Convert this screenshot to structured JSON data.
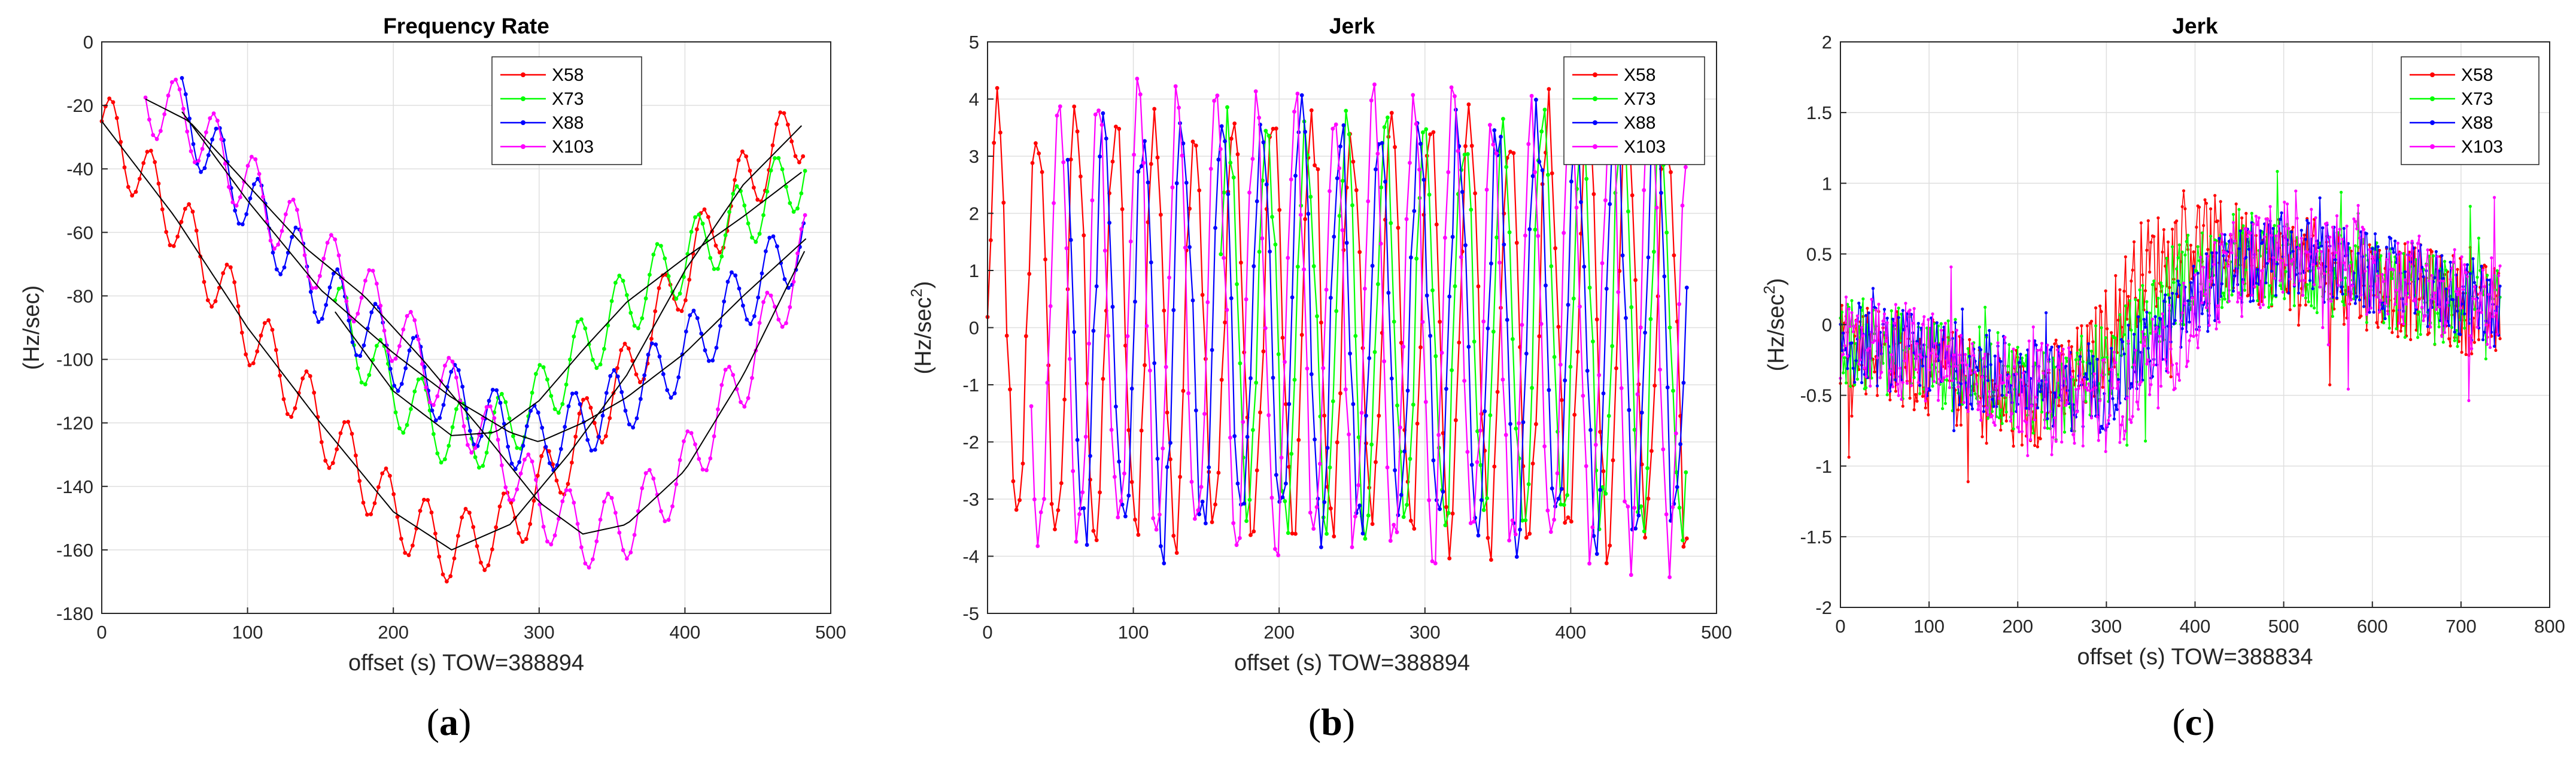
{
  "figure": {
    "captions": [
      {
        "open": "(",
        "letter": "a",
        "close": ")"
      },
      {
        "open": "(",
        "letter": "b",
        "close": ")"
      },
      {
        "open": "(",
        "letter": "c",
        "close": ")"
      }
    ]
  },
  "chart_data": [
    {
      "type": "line",
      "title": "Frequency Rate",
      "xlabel": "offset (s) TOW=388894",
      "ylabel": "(Hz/sec)",
      "xlim": [
        0,
        500
      ],
      "ylim": [
        -180,
        0
      ],
      "xticks": [
        0,
        100,
        200,
        300,
        400,
        500
      ],
      "yticks": [
        -180,
        -160,
        -140,
        -120,
        -100,
        -80,
        -60,
        -40,
        -20,
        0
      ],
      "grid": true,
      "legend_position": "top-right",
      "series": [
        {
          "name": "X58",
          "color": "#ff0000",
          "x_range": [
            0,
            483
          ],
          "trend": [
            [
              0,
              -25
            ],
            [
              50,
              -55
            ],
            [
              100,
              -90
            ],
            [
              150,
              -120
            ],
            [
              200,
              -148
            ],
            [
              240,
              -160
            ],
            [
              280,
              -152
            ],
            [
              320,
              -130
            ],
            [
              360,
              -105
            ],
            [
              400,
              -72
            ],
            [
              440,
              -45
            ],
            [
              483,
              -25
            ]
          ],
          "amplitude": 11,
          "period": 27
        },
        {
          "name": "X73",
          "color": "#00ff00",
          "x_range": [
            160,
            483
          ],
          "trend": [
            [
              160,
              -85
            ],
            [
              200,
              -110
            ],
            [
              240,
              -124
            ],
            [
              270,
              -123
            ],
            [
              300,
              -113
            ],
            [
              330,
              -97
            ],
            [
              360,
              -82
            ],
            [
              400,
              -68
            ],
            [
              440,
              -55
            ],
            [
              483,
              -40
            ]
          ],
          "amplitude": 11,
          "period": 27
        },
        {
          "name": "X88",
          "color": "#0000ff",
          "x_range": [
            55,
            483
          ],
          "trend": [
            [
              55,
              -22
            ],
            [
              100,
              -50
            ],
            [
              150,
              -78
            ],
            [
              200,
              -98
            ],
            [
              240,
              -112
            ],
            [
              280,
              -123
            ],
            [
              300,
              -126
            ],
            [
              330,
              -120
            ],
            [
              360,
              -112
            ],
            [
              400,
              -98
            ],
            [
              440,
              -80
            ],
            [
              483,
              -62
            ]
          ],
          "amplitude": 11,
          "period": 27
        },
        {
          "name": "X103",
          "color": "#ff00ff",
          "x_range": [
            30,
            483
          ],
          "trend": [
            [
              30,
              -18
            ],
            [
              60,
              -25
            ],
            [
              100,
              -45
            ],
            [
              140,
              -65
            ],
            [
              180,
              -80
            ],
            [
              220,
              -100
            ],
            [
              260,
              -122
            ],
            [
              300,
              -145
            ],
            [
              330,
              -155
            ],
            [
              360,
              -152
            ],
            [
              400,
              -135
            ],
            [
              440,
              -105
            ],
            [
              483,
              -65
            ]
          ],
          "amplitude": 11,
          "period": 27
        }
      ],
      "fit_lines_color": "#000000"
    },
    {
      "type": "line",
      "title": "Jerk",
      "xlabel": "offset (s) TOW=388894",
      "ylabel": "(Hz/sec",
      "ylabel_superscript": "2",
      "ylabel_close": ")",
      "xlim": [
        0,
        500
      ],
      "ylim": [
        -5,
        5
      ],
      "xticks": [
        0,
        100,
        200,
        300,
        400,
        500
      ],
      "yticks": [
        -5,
        -4,
        -3,
        -2,
        -1,
        0,
        1,
        2,
        3,
        4,
        5
      ],
      "grid": true,
      "legend_position": "top-right",
      "series": [
        {
          "name": "X58",
          "color": "#ff0000",
          "x_range": [
            0,
            480
          ],
          "amplitude": 3.6,
          "period": 27,
          "phase": 0.0,
          "noise": 0.6
        },
        {
          "name": "X73",
          "color": "#00ff00",
          "x_range": [
            160,
            480
          ],
          "amplitude": 3.4,
          "period": 27,
          "phase": 0.9,
          "noise": 0.6
        },
        {
          "name": "X88",
          "color": "#0000ff",
          "x_range": [
            55,
            480
          ],
          "amplitude": 3.6,
          "period": 27,
          "phase": 1.8,
          "noise": 0.6
        },
        {
          "name": "X103",
          "color": "#ff00ff",
          "x_range": [
            30,
            480
          ],
          "amplitude": 3.8,
          "period": 27,
          "phase": 2.7,
          "noise": 0.6
        }
      ]
    },
    {
      "type": "line",
      "title": "Jerk",
      "xlabel": "offset (s) TOW=388834",
      "ylabel": "(Hz/sec",
      "ylabel_superscript": "2",
      "ylabel_close": ")",
      "xlim": [
        0,
        800
      ],
      "ylim": [
        -2,
        2
      ],
      "xticks": [
        0,
        100,
        200,
        300,
        400,
        500,
        600,
        700,
        800
      ],
      "yticks": [
        -2,
        -1.5,
        -1,
        -0.5,
        0,
        0.5,
        1,
        1.5,
        2
      ],
      "grid": true,
      "legend_position": "top-right",
      "series": [
        {
          "name": "X58",
          "color": "#ff0000",
          "x_range": [
            0,
            745
          ],
          "trend": [
            [
              0,
              -0.1
            ],
            [
              100,
              -0.3
            ],
            [
              200,
              -0.6
            ],
            [
              280,
              -0.3
            ],
            [
              340,
              0.4
            ],
            [
              400,
              0.6
            ],
            [
              500,
              0.45
            ],
            [
              600,
              0.3
            ],
            [
              700,
              0.15
            ],
            [
              745,
              0.05
            ]
          ],
          "noise": 0.35
        },
        {
          "name": "X73",
          "color": "#00ff00",
          "x_range": [
            0,
            745
          ],
          "trend": [
            [
              0,
              -0.1
            ],
            [
              100,
              -0.25
            ],
            [
              250,
              -0.5
            ],
            [
              320,
              -0.2
            ],
            [
              380,
              0.3
            ],
            [
              450,
              0.5
            ],
            [
              550,
              0.35
            ],
            [
              650,
              0.2
            ],
            [
              745,
              0.05
            ]
          ],
          "noise": 0.33
        },
        {
          "name": "X88",
          "color": "#0000ff",
          "x_range": [
            0,
            745
          ],
          "trend": [
            [
              0,
              -0.1
            ],
            [
              150,
              -0.3
            ],
            [
              290,
              -0.5
            ],
            [
              360,
              -0.1
            ],
            [
              430,
              0.35
            ],
            [
              500,
              0.5
            ],
            [
              600,
              0.35
            ],
            [
              700,
              0.2
            ],
            [
              745,
              0.1
            ]
          ],
          "noise": 0.3
        },
        {
          "name": "X103",
          "color": "#ff00ff",
          "x_range": [
            0,
            745
          ],
          "trend": [
            [
              0,
              -0.05
            ],
            [
              100,
              -0.25
            ],
            [
              200,
              -0.45
            ],
            [
              300,
              -0.55
            ],
            [
              360,
              -0.3
            ],
            [
              420,
              0.3
            ],
            [
              500,
              0.55
            ],
            [
              600,
              0.4
            ],
            [
              700,
              0.2
            ],
            [
              745,
              0.1
            ]
          ],
          "noise": 0.35
        }
      ]
    }
  ]
}
